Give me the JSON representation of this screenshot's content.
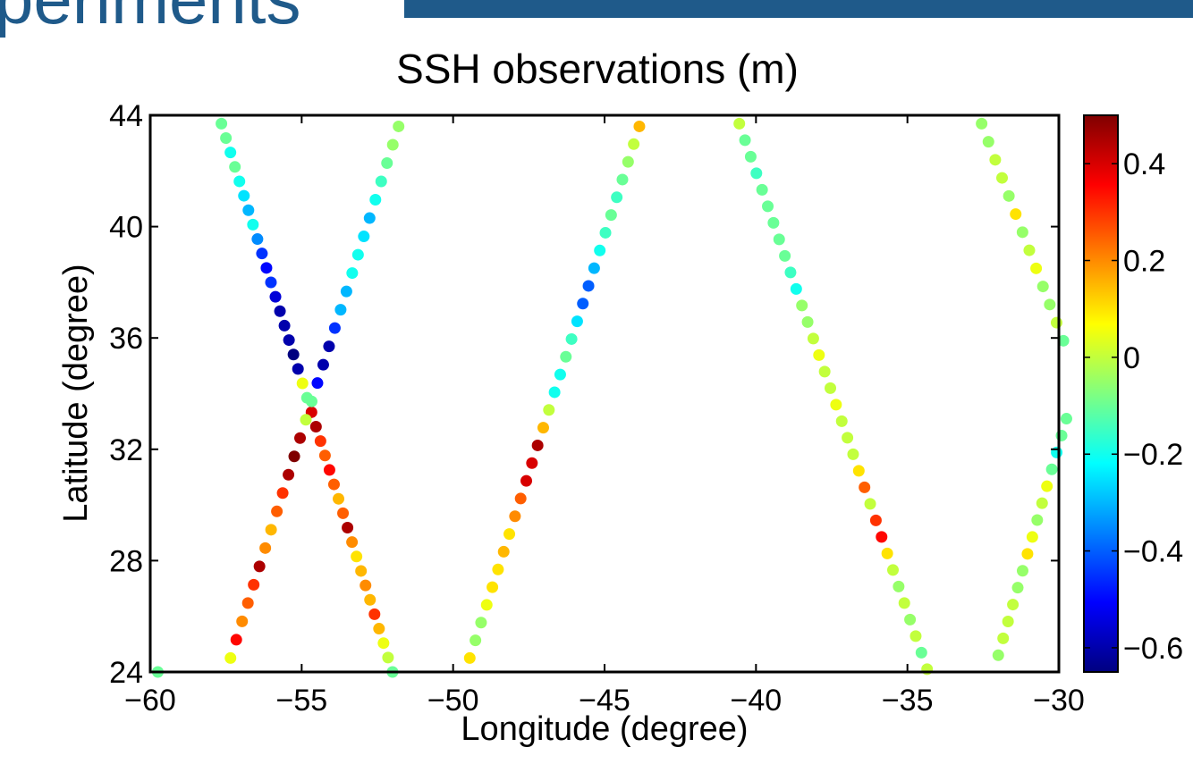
{
  "header": {
    "partial_text": "periments",
    "accent_color": "#1f5a8a"
  },
  "chart_data": {
    "type": "scatter",
    "title": "SSH observations (m)",
    "xlabel": "Longitude (degree)",
    "ylabel": "Latitude (degree)",
    "xlim": [
      -60,
      -30
    ],
    "ylim": [
      24,
      44
    ],
    "x_ticks": [
      -60,
      -55,
      -50,
      -45,
      -40,
      -35,
      -30
    ],
    "x_tick_labels": [
      "−60",
      "−55",
      "−50",
      "−45",
      "−40",
      "−35",
      "−30"
    ],
    "y_ticks": [
      24,
      28,
      32,
      36,
      40,
      44
    ],
    "y_tick_labels": [
      "24",
      "28",
      "32",
      "36",
      "40",
      "44"
    ],
    "grid": false,
    "colormap": "jet",
    "clim": [
      -0.65,
      0.5
    ],
    "colorbar": {
      "ticks": [
        0.4,
        0.2,
        0,
        -0.2,
        -0.4,
        -0.6
      ],
      "tick_labels": [
        "0.4",
        "0.2",
        "0",
        "−0.2",
        "−0.4",
        "−0.6"
      ]
    },
    "tracks": [
      {
        "lon_start": -57.65,
        "lat_start": 43.7,
        "lon_end": -52.0,
        "lat_end": 24.0,
        "ssh": [
          -0.1,
          -0.1,
          -0.2,
          -0.1,
          -0.2,
          -0.25,
          -0.3,
          -0.2,
          -0.35,
          -0.45,
          -0.5,
          -0.45,
          -0.55,
          -0.6,
          -0.6,
          -0.6,
          -0.65,
          -0.6,
          0.05,
          -0.1,
          0.4,
          0.45,
          0.3,
          0.25,
          0.35,
          0.25,
          0.15,
          0.25,
          0.45,
          0.2,
          0.1,
          0.15,
          0.2,
          0.15,
          0.3,
          0.15,
          0.05,
          0.0,
          -0.1
        ]
      },
      {
        "lon_start": -51.8,
        "lat_start": 43.6,
        "lon_end": -57.35,
        "lat_end": 24.5,
        "ssh": [
          -0.05,
          -0.05,
          -0.1,
          -0.15,
          -0.2,
          -0.3,
          -0.25,
          -0.2,
          -0.2,
          -0.3,
          -0.3,
          -0.45,
          -0.6,
          -0.6,
          -0.5,
          -0.1,
          0.0,
          0.45,
          0.5,
          0.45,
          0.3,
          0.25,
          0.15,
          0.2,
          0.45,
          0.3,
          0.25,
          0.2,
          0.35,
          0.05
        ]
      },
      {
        "lon_start": -59.75,
        "lat_start": 24.0,
        "lon_end": -59.75,
        "lat_end": 24.0,
        "ssh": [
          -0.1
        ]
      },
      {
        "lon_start": -43.85,
        "lat_start": 43.6,
        "lon_end": -49.45,
        "lat_end": 24.5,
        "ssh": [
          0.15,
          0.0,
          -0.05,
          -0.1,
          -0.15,
          -0.1,
          -0.15,
          -0.2,
          -0.3,
          -0.4,
          -0.4,
          -0.25,
          -0.15,
          -0.1,
          -0.2,
          -0.2,
          0.0,
          0.15,
          0.45,
          0.4,
          0.4,
          0.25,
          0.2,
          0.1,
          0.15,
          0.1,
          0.1,
          0.05,
          -0.05,
          -0.05,
          0.1
        ]
      },
      {
        "lon_start": -40.55,
        "lat_start": 43.7,
        "lon_end": -34.35,
        "lat_end": 24.1,
        "ssh": [
          0.0,
          -0.1,
          -0.1,
          -0.15,
          -0.1,
          -0.1,
          -0.1,
          -0.1,
          -0.1,
          -0.15,
          -0.2,
          -0.05,
          -0.05,
          0.0,
          0.05,
          0.0,
          0.0,
          0.05,
          0.0,
          0.0,
          0.0,
          0.1,
          0.25,
          0.0,
          0.3,
          0.35,
          0.1,
          0.0,
          -0.05,
          0.0,
          -0.05,
          0.0,
          -0.1,
          0.0
        ]
      },
      {
        "lon_start": -32.55,
        "lat_start": 43.7,
        "lon_end": -29.85,
        "lat_end": 35.9,
        "ssh": [
          -0.05,
          -0.05,
          0.0,
          0.0,
          -0.05,
          0.1,
          -0.05,
          0.0,
          0.05,
          -0.05,
          -0.05,
          0.0,
          -0.1
        ]
      },
      {
        "lon_start": -29.75,
        "lat_start": 33.1,
        "lon_end": -32.0,
        "lat_end": 24.6,
        "ssh": [
          -0.1,
          -0.1,
          -0.2,
          -0.1,
          0.05,
          0.0,
          -0.05,
          0.05,
          0.1,
          -0.05,
          -0.05,
          0.0,
          0.0,
          0.0,
          -0.05
        ]
      }
    ]
  }
}
